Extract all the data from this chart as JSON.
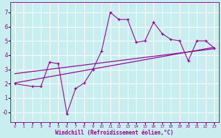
{
  "xlabel": "Windchill (Refroidissement éolien,°C)",
  "bg_color": "#c8eef0",
  "line_color": "#990099",
  "grid_color": "#ffffff",
  "ylim": [
    -0.7,
    7.7
  ],
  "xlim": [
    -0.5,
    23.5
  ],
  "yticks": [
    0,
    1,
    2,
    3,
    4,
    5,
    6,
    7
  ],
  "ytick_labels": [
    "-0",
    "1",
    "2",
    "3",
    "4",
    "5",
    "6",
    "7"
  ],
  "xticks": [
    0,
    1,
    2,
    3,
    4,
    5,
    6,
    7,
    8,
    9,
    10,
    11,
    12,
    13,
    14,
    15,
    16,
    17,
    18,
    19,
    20,
    21,
    22,
    23
  ],
  "line1_x": [
    0,
    2,
    3,
    4,
    5,
    6,
    7,
    8,
    9,
    10,
    11,
    12,
    13,
    14,
    15,
    16,
    17,
    18,
    19,
    20,
    21,
    22,
    23
  ],
  "line1_y": [
    2.0,
    1.8,
    1.8,
    3.5,
    3.4,
    -0.1,
    1.65,
    2.05,
    3.0,
    4.3,
    7.0,
    6.5,
    6.5,
    4.9,
    5.0,
    6.3,
    5.5,
    5.1,
    5.0,
    3.6,
    5.0,
    5.0,
    4.5
  ],
  "line2_x": [
    0,
    23
  ],
  "line2_y": [
    2.05,
    4.55
  ],
  "line3_x": [
    0,
    23
  ],
  "line3_y": [
    2.7,
    4.45
  ]
}
